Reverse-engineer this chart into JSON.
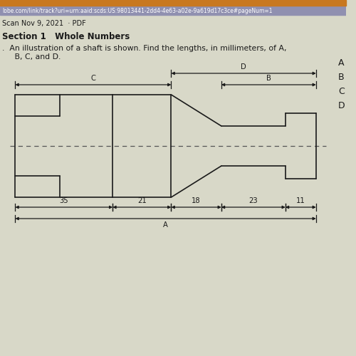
{
  "bg_color": "#d8d8c8",
  "line_color": "#1a1a1a",
  "dashed_color": "#555555",
  "url_text": "lobe.com/link/track?uri=urn:aaid:scds:US:98013441-2dd4-4e63-a02e-9a619d17c3ce#pageNum=1",
  "scan_text": "Scan Nov 9, 2021  · PDF",
  "section_text": "Section 1   Whole Numbers",
  "q_line1": ".  An illustration of a shaft is shown. Find the lengths, in millimeters, of A,",
  "q_line2": "   B, C, and D.",
  "right_labels": [
    "A",
    "B",
    "C",
    "D"
  ],
  "dim_segs": [
    35,
    21,
    18,
    23,
    11
  ],
  "header_color": "#c87820",
  "url_bar_color": "#9090b0",
  "url_text_color": "#ffffff"
}
